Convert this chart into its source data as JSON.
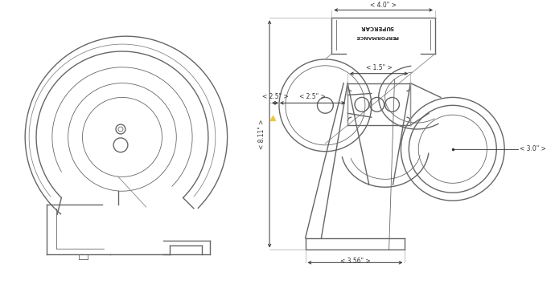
{
  "bg_color": "#ffffff",
  "line_color": "#666666",
  "line_color2": "#888888",
  "lw_thick": 1.0,
  "lw_thin": 0.6,
  "dim_color": "#333333",
  "dim_fontsize": 5.5,
  "yellow": "#e8c840",
  "annotations": {
    "top_width": "< 4.0\" >",
    "height": "< 8.11\" >",
    "mid_width": "< 2.5\" >",
    "center_width": "< 1.5\" >",
    "outlet_diameter": "< 3.0\" >",
    "bottom_width": "< 3.56\" >"
  },
  "label_line1": "PERFORMANCE",
  "label_line2": "SUPERCAR"
}
